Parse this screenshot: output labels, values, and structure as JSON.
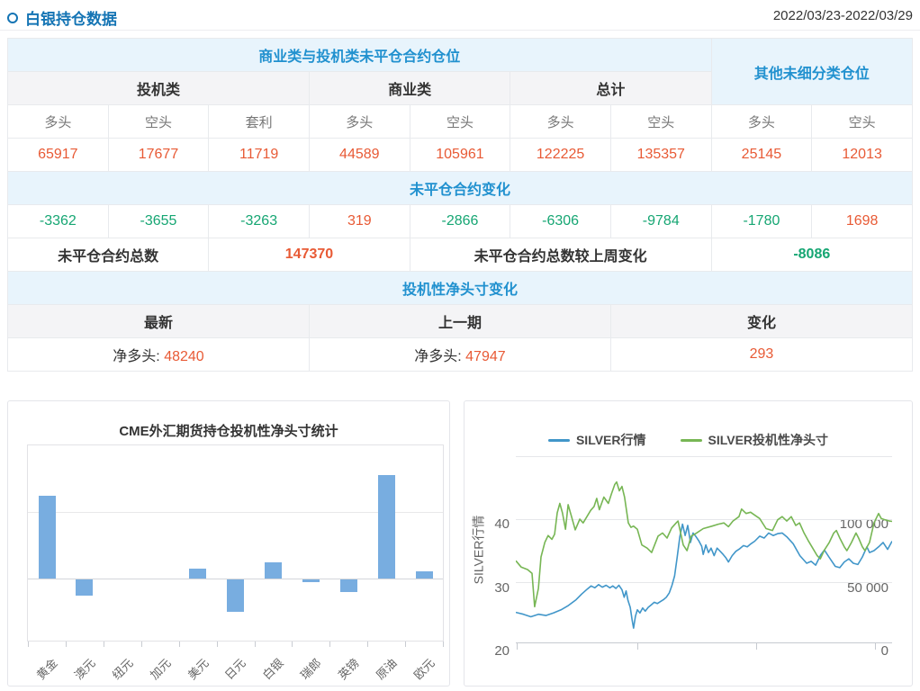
{
  "header": {
    "title": "白银持仓数据",
    "date_range": "2022/03/23-2022/03/29"
  },
  "colors": {
    "title_blue": "#1474b4",
    "band_blue": "#2191cf",
    "band_bg": "#e8f4fc",
    "orange": "#e85a35",
    "green": "#16a673",
    "bar_blue": "#78ade0",
    "line_blue": "#4196c9",
    "line_green": "#77b654"
  },
  "table": {
    "group_header_main": "商业类与投机类未平仓合约仓位",
    "group_header_other": "其他未细分类仓位",
    "subgroups": [
      "投机类",
      "商业类",
      "总计"
    ],
    "col_headers": [
      "多头",
      "空头",
      "套利",
      "多头",
      "空头",
      "多头",
      "空头",
      "多头",
      "空头"
    ],
    "positions": [
      "65917",
      "17677",
      "11719",
      "44589",
      "105961",
      "122225",
      "135357",
      "25145",
      "12013"
    ],
    "change_band": "未平仓合约变化",
    "changes": [
      "-3362",
      "-3655",
      "-3263",
      "319",
      "-2866",
      "-6306",
      "-9784",
      "-1780",
      "1698"
    ],
    "total_label": "未平仓合约总数",
    "total_value": "147370",
    "weekly_change_label": "未平仓合约总数较上周变化",
    "weekly_change_value": "-8086",
    "net_band": "投机性净头寸变化",
    "net_headers": [
      "最新",
      "上一期",
      "变化"
    ],
    "net_latest_label": "净多头:",
    "net_latest_value": "48240",
    "net_prev_label": "净多头:",
    "net_prev_value": "47947",
    "net_change_value": "293"
  },
  "chart_data": [
    {
      "type": "bar",
      "title": "CME外汇期货持仓投机性净头寸统计",
      "categories": [
        "黄金",
        "澳元",
        "纽元",
        "加元",
        "美元",
        "日元",
        "白银",
        "瑞郎",
        "英镑",
        "原油",
        "欧元"
      ],
      "values": [
        250000,
        -48000,
        0,
        0,
        29000,
        -96000,
        48240,
        -8000,
        -37000,
        312000,
        21000
      ],
      "xlabel": "",
      "ylabel": "",
      "ylim": [
        -200000,
        400000
      ],
      "gridline_step": 200000,
      "grid": true,
      "legend_position": "none"
    },
    {
      "type": "line",
      "legend": [
        "SILVER行情",
        "SILVER投机性净头寸"
      ],
      "axes": {
        "left": {
          "name": "SILVER行情",
          "tick_labels": [
            "40",
            "30",
            "20"
          ],
          "top": 40,
          "scale": 7
        },
        "right": {
          "tick_labels": [
            "100 000",
            "50 000",
            "0"
          ],
          "top": 100000,
          "scale": 0.0014
        }
      },
      "grid": true,
      "legend_position": "top",
      "series": [
        {
          "name": "SILVER行情",
          "axis": "left",
          "points": [
            [
              0.0,
              15.2
            ],
            [
              0.02,
              14.9
            ],
            [
              0.04,
              14.5
            ],
            [
              0.06,
              14.9
            ],
            [
              0.08,
              14.7
            ],
            [
              0.1,
              15.1
            ],
            [
              0.12,
              15.6
            ],
            [
              0.14,
              16.3
            ],
            [
              0.16,
              17.2
            ],
            [
              0.175,
              18.1
            ],
            [
              0.19,
              18.9
            ],
            [
              0.2,
              19.4
            ],
            [
              0.21,
              19.1
            ],
            [
              0.22,
              19.6
            ],
            [
              0.23,
              19.2
            ],
            [
              0.24,
              19.5
            ],
            [
              0.25,
              19.1
            ],
            [
              0.258,
              19.4
            ],
            [
              0.266,
              19.0
            ],
            [
              0.274,
              19.5
            ],
            [
              0.282,
              18.8
            ],
            [
              0.288,
              17.6
            ],
            [
              0.293,
              18.6
            ],
            [
              0.298,
              17.1
            ],
            [
              0.304,
              16.0
            ],
            [
              0.309,
              14.0
            ],
            [
              0.313,
              12.7
            ],
            [
              0.318,
              14.6
            ],
            [
              0.323,
              15.6
            ],
            [
              0.33,
              15.1
            ],
            [
              0.337,
              15.9
            ],
            [
              0.344,
              15.4
            ],
            [
              0.352,
              16.0
            ],
            [
              0.36,
              16.4
            ],
            [
              0.368,
              16.8
            ],
            [
              0.376,
              16.6
            ],
            [
              0.384,
              16.9
            ],
            [
              0.392,
              17.2
            ],
            [
              0.4,
              17.6
            ],
            [
              0.408,
              18.3
            ],
            [
              0.415,
              19.5
            ],
            [
              0.422,
              21.0
            ],
            [
              0.429,
              24.0
            ],
            [
              0.436,
              27.2
            ],
            [
              0.443,
              29.2
            ],
            [
              0.45,
              27.4
            ],
            [
              0.457,
              29.0
            ],
            [
              0.464,
              26.3
            ],
            [
              0.471,
              27.8
            ],
            [
              0.478,
              27.3
            ],
            [
              0.486,
              26.6
            ],
            [
              0.494,
              25.7
            ],
            [
              0.498,
              24.4
            ],
            [
              0.505,
              25.9
            ],
            [
              0.512,
              24.7
            ],
            [
              0.519,
              25.4
            ],
            [
              0.527,
              24.2
            ],
            [
              0.535,
              25.4
            ],
            [
              0.543,
              24.9
            ],
            [
              0.551,
              24.4
            ],
            [
              0.558,
              23.9
            ],
            [
              0.565,
              23.2
            ],
            [
              0.575,
              24.2
            ],
            [
              0.585,
              24.9
            ],
            [
              0.595,
              25.3
            ],
            [
              0.605,
              25.8
            ],
            [
              0.615,
              25.6
            ],
            [
              0.625,
              26.1
            ],
            [
              0.635,
              26.5
            ],
            [
              0.648,
              27.3
            ],
            [
              0.66,
              27.0
            ],
            [
              0.672,
              27.8
            ],
            [
              0.684,
              27.4
            ],
            [
              0.696,
              27.7
            ],
            [
              0.708,
              27.8
            ],
            [
              0.72,
              27.2
            ],
            [
              0.737,
              26.1
            ],
            [
              0.755,
              24.2
            ],
            [
              0.773,
              23.0
            ],
            [
              0.785,
              23.3
            ],
            [
              0.797,
              22.7
            ],
            [
              0.81,
              24.3
            ],
            [
              0.82,
              25.1
            ],
            [
              0.832,
              24.0
            ],
            [
              0.849,
              22.5
            ],
            [
              0.861,
              22.3
            ],
            [
              0.873,
              23.2
            ],
            [
              0.885,
              23.7
            ],
            [
              0.897,
              23.0
            ],
            [
              0.909,
              22.8
            ],
            [
              0.921,
              24.0
            ],
            [
              0.933,
              25.6
            ],
            [
              0.94,
              24.7
            ],
            [
              0.952,
              25.0
            ],
            [
              0.964,
              25.6
            ],
            [
              0.976,
              26.3
            ],
            [
              0.988,
              25.2
            ],
            [
              1.0,
              26.5
            ]
          ]
        },
        {
          "name": "SILVER投机性净头寸",
          "axis": "right",
          "points": [
            [
              0.0,
              17000
            ],
            [
              0.014,
              12000
            ],
            [
              0.031,
              10000
            ],
            [
              0.043,
              7000
            ],
            [
              0.05,
              -19500
            ],
            [
              0.06,
              -5000
            ],
            [
              0.067,
              20000
            ],
            [
              0.077,
              31500
            ],
            [
              0.086,
              37000
            ],
            [
              0.096,
              34000
            ],
            [
              0.103,
              38000
            ],
            [
              0.11,
              55000
            ],
            [
              0.117,
              62500
            ],
            [
              0.124,
              55000
            ],
            [
              0.132,
              42000
            ],
            [
              0.139,
              61500
            ],
            [
              0.148,
              52000
            ],
            [
              0.158,
              41500
            ],
            [
              0.17,
              50000
            ],
            [
              0.179,
              47000
            ],
            [
              0.189,
              52000
            ],
            [
              0.199,
              57000
            ],
            [
              0.208,
              60000
            ],
            [
              0.215,
              66500
            ],
            [
              0.222,
              57500
            ],
            [
              0.234,
              67500
            ],
            [
              0.246,
              62500
            ],
            [
              0.254,
              70000
            ],
            [
              0.263,
              77500
            ],
            [
              0.268,
              79500
            ],
            [
              0.275,
              72500
            ],
            [
              0.282,
              76000
            ],
            [
              0.289,
              67500
            ],
            [
              0.299,
              47000
            ],
            [
              0.306,
              43500
            ],
            [
              0.313,
              44500
            ],
            [
              0.323,
              42000
            ],
            [
              0.335,
              29500
            ],
            [
              0.349,
              27000
            ],
            [
              0.361,
              23500
            ],
            [
              0.378,
              36500
            ],
            [
              0.39,
              39000
            ],
            [
              0.402,
              35000
            ],
            [
              0.414,
              43000
            ],
            [
              0.426,
              47000
            ],
            [
              0.431,
              48500
            ],
            [
              0.445,
              29500
            ],
            [
              0.455,
              25000
            ],
            [
              0.466,
              36500
            ],
            [
              0.478,
              38500
            ],
            [
              0.498,
              42500
            ],
            [
              0.522,
              44500
            ],
            [
              0.538,
              46000
            ],
            [
              0.553,
              47000
            ],
            [
              0.565,
              44000
            ],
            [
              0.577,
              48500
            ],
            [
              0.593,
              52000
            ],
            [
              0.6,
              58000
            ],
            [
              0.612,
              54500
            ],
            [
              0.624,
              55500
            ],
            [
              0.636,
              53000
            ],
            [
              0.648,
              50500
            ],
            [
              0.665,
              42500
            ],
            [
              0.682,
              41000
            ],
            [
              0.696,
              49500
            ],
            [
              0.708,
              52000
            ],
            [
              0.72,
              48500
            ],
            [
              0.732,
              52000
            ],
            [
              0.744,
              45000
            ],
            [
              0.754,
              47000
            ],
            [
              0.766,
              39000
            ],
            [
              0.777,
              33000
            ],
            [
              0.789,
              27000
            ],
            [
              0.801,
              21000
            ],
            [
              0.809,
              18500
            ],
            [
              0.82,
              25500
            ],
            [
              0.833,
              31500
            ],
            [
              0.845,
              39000
            ],
            [
              0.852,
              41000
            ],
            [
              0.861,
              35000
            ],
            [
              0.873,
              28000
            ],
            [
              0.88,
              25000
            ],
            [
              0.892,
              31500
            ],
            [
              0.904,
              39000
            ],
            [
              0.911,
              35000
            ],
            [
              0.921,
              28000
            ],
            [
              0.928,
              25000
            ],
            [
              0.94,
              31500
            ],
            [
              0.952,
              47000
            ],
            [
              0.964,
              54500
            ],
            [
              0.971,
              50500
            ],
            [
              0.981,
              49500
            ],
            [
              0.993,
              48500
            ],
            [
              1.0,
              48240
            ]
          ]
        }
      ]
    }
  ]
}
